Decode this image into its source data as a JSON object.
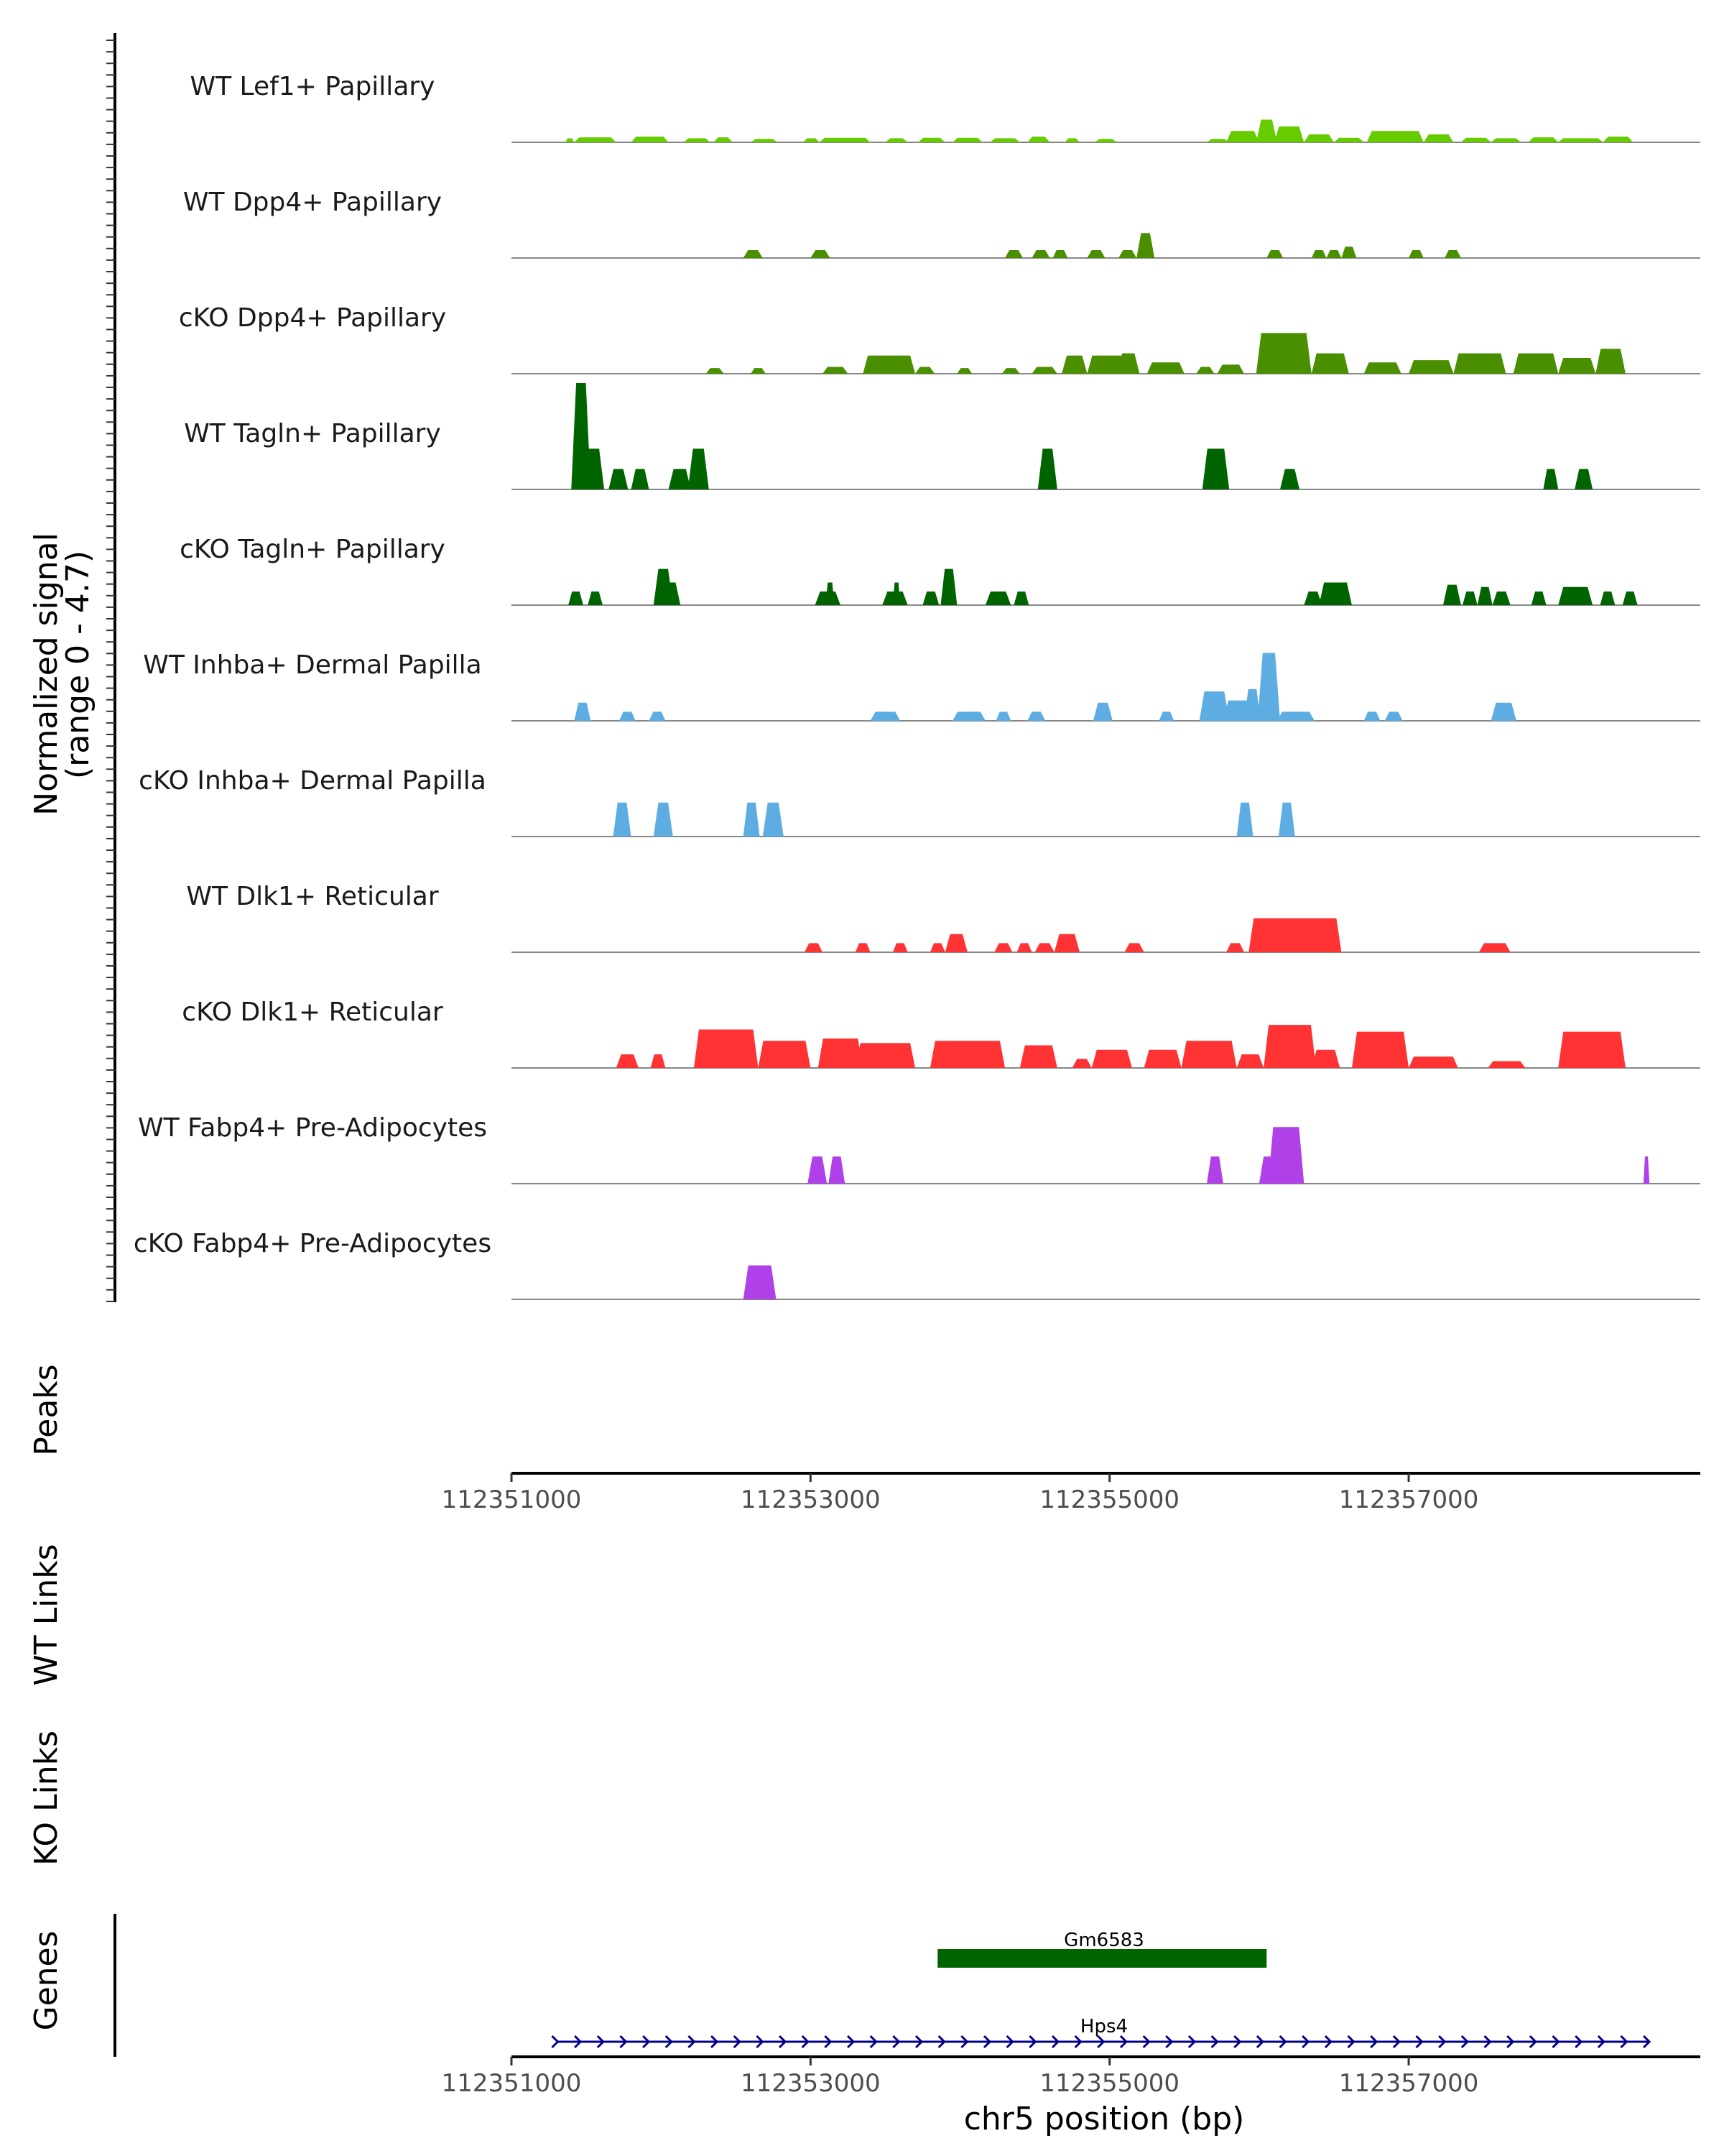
{
  "chart_data": {
    "type": "area",
    "title": "",
    "ylabel": "Normalized signal",
    "ylabel_range": "(range 0 - 4.7)",
    "ylim": [
      0,
      4.7
    ],
    "xlim": [
      112351000,
      112358950
    ],
    "xlabel": "chr5 position (bp)",
    "xticks": [
      112351000,
      112353000,
      112355000,
      112357000
    ],
    "xtick_labels": [
      "112351000",
      "112353000",
      "112355000",
      "112357000"
    ],
    "tracks": [
      {
        "name": "WT Lef1+ Papillary",
        "color": "#66cc00",
        "peaks": [
          [
            112351360,
            112351420,
            0.18
          ],
          [
            112351420,
            112351700,
            0.22
          ],
          [
            112351800,
            112352050,
            0.25
          ],
          [
            112352150,
            112352330,
            0.18
          ],
          [
            112352350,
            112352480,
            0.22
          ],
          [
            112352600,
            112352780,
            0.15
          ],
          [
            112352950,
            112353060,
            0.18
          ],
          [
            112353060,
            112353400,
            0.2
          ],
          [
            112353500,
            112353650,
            0.18
          ],
          [
            112353720,
            112353900,
            0.2
          ],
          [
            112353950,
            112354150,
            0.2
          ],
          [
            112354200,
            112354400,
            0.18
          ],
          [
            112354450,
            112354600,
            0.25
          ],
          [
            112354700,
            112354800,
            0.18
          ],
          [
            112354900,
            112355050,
            0.15
          ],
          [
            112355650,
            112355800,
            0.15
          ],
          [
            112355780,
            112356000,
            0.5
          ],
          [
            112355980,
            112356120,
            1.0
          ],
          [
            112356100,
            112356300,
            0.7
          ],
          [
            112356300,
            112356500,
            0.35
          ],
          [
            112356500,
            112356700,
            0.2
          ],
          [
            112356720,
            112357100,
            0.5
          ],
          [
            112357100,
            112357300,
            0.35
          ],
          [
            112357350,
            112357550,
            0.2
          ],
          [
            112357550,
            112357750,
            0.18
          ],
          [
            112357800,
            112358000,
            0.22
          ],
          [
            112358000,
            112358300,
            0.18
          ],
          [
            112358300,
            112358500,
            0.25
          ]
        ]
      },
      {
        "name": "WT Dpp4+ Papillary",
        "color": "#4a8f00",
        "peaks": [
          [
            112352550,
            112352680,
            0.35
          ],
          [
            112353000,
            112353130,
            0.35
          ],
          [
            112354300,
            112354420,
            0.35
          ],
          [
            112354480,
            112354600,
            0.35
          ],
          [
            112354620,
            112354720,
            0.35
          ],
          [
            112354850,
            112354970,
            0.35
          ],
          [
            112355060,
            112355180,
            0.35
          ],
          [
            112355180,
            112355300,
            1.1
          ],
          [
            112355200,
            112355300,
            0.6
          ],
          [
            112356050,
            112356160,
            0.35
          ],
          [
            112356350,
            112356450,
            0.35
          ],
          [
            112356450,
            112356550,
            0.35
          ],
          [
            112356550,
            112356650,
            0.5
          ],
          [
            112357000,
            112357100,
            0.35
          ],
          [
            112357240,
            112357350,
            0.35
          ]
        ]
      },
      {
        "name": "cKO Dpp4+ Papillary",
        "color": "#4a8f00",
        "peaks": [
          [
            112352300,
            112352420,
            0.25
          ],
          [
            112352600,
            112352700,
            0.25
          ],
          [
            112353080,
            112353250,
            0.3
          ],
          [
            112353350,
            112353700,
            0.8
          ],
          [
            112353700,
            112353830,
            0.3
          ],
          [
            112353980,
            112354080,
            0.25
          ],
          [
            112354280,
            112354400,
            0.25
          ],
          [
            112354480,
            112354650,
            0.3
          ],
          [
            112354680,
            112354850,
            0.8
          ],
          [
            112354850,
            112355150,
            0.8
          ],
          [
            112355050,
            112355200,
            0.9
          ],
          [
            112355250,
            112355500,
            0.5
          ],
          [
            112355580,
            112355700,
            0.3
          ],
          [
            112355720,
            112355900,
            0.4
          ],
          [
            112355980,
            112356350,
            1.8
          ],
          [
            112356350,
            112356600,
            0.9
          ],
          [
            112356700,
            112356950,
            0.5
          ],
          [
            112357000,
            112357300,
            0.6
          ],
          [
            112357300,
            112357650,
            0.9
          ],
          [
            112357700,
            112358000,
            0.9
          ],
          [
            112358000,
            112358250,
            0.7
          ],
          [
            112358250,
            112358450,
            1.1
          ]
        ]
      },
      {
        "name": "WT Tagln+ Papillary",
        "color": "#006400",
        "peaks": [
          [
            112351400,
            112351530,
            4.7
          ],
          [
            112351470,
            112351620,
            1.8
          ],
          [
            112351650,
            112351780,
            0.9
          ],
          [
            112351800,
            112351920,
            0.9
          ],
          [
            112352050,
            112352200,
            0.9
          ],
          [
            112352180,
            112352320,
            1.8
          ],
          [
            112354520,
            112354650,
            1.8
          ],
          [
            112355620,
            112355800,
            1.8
          ],
          [
            112356140,
            112356270,
            0.9
          ],
          [
            112357900,
            112358000,
            0.9
          ],
          [
            112358110,
            112358230,
            0.9
          ]
        ]
      },
      {
        "name": "cKO Tagln+ Papillary",
        "color": "#006400",
        "peaks": [
          [
            112351380,
            112351480,
            0.6
          ],
          [
            112351510,
            112351610,
            0.6
          ],
          [
            112351950,
            112352080,
            1.6
          ],
          [
            112352000,
            112352130,
            1.0
          ],
          [
            112353030,
            112353200,
            0.6
          ],
          [
            112353100,
            112353160,
            1.0
          ],
          [
            112353480,
            112353650,
            0.6
          ],
          [
            112353550,
            112353600,
            1.0
          ],
          [
            112353750,
            112353860,
            0.6
          ],
          [
            112353870,
            112353980,
            1.6
          ],
          [
            112354170,
            112354340,
            0.6
          ],
          [
            112354360,
            112354460,
            0.6
          ],
          [
            112356300,
            112356420,
            0.6
          ],
          [
            112356400,
            112356620,
            1.0
          ],
          [
            112357230,
            112357350,
            0.9
          ],
          [
            112357360,
            112357460,
            0.6
          ],
          [
            112357460,
            112357560,
            0.8
          ],
          [
            112357560,
            112357680,
            0.6
          ],
          [
            112357820,
            112357920,
            0.6
          ],
          [
            112358000,
            112358230,
            0.8
          ],
          [
            112358280,
            112358380,
            0.6
          ],
          [
            112358430,
            112358530,
            0.6
          ]
        ]
      },
      {
        "name": "WT Inhba+ Dermal Papilla",
        "color": "#5dade2",
        "peaks": [
          [
            112351420,
            112351530,
            0.8
          ],
          [
            112351720,
            112351830,
            0.4
          ],
          [
            112351920,
            112352030,
            0.4
          ],
          [
            112353400,
            112353600,
            0.4
          ],
          [
            112353950,
            112354170,
            0.4
          ],
          [
            112354240,
            112354340,
            0.4
          ],
          [
            112354450,
            112354570,
            0.4
          ],
          [
            112354890,
            112355020,
            0.8
          ],
          [
            112355330,
            112355430,
            0.4
          ],
          [
            112355600,
            112355800,
            1.3
          ],
          [
            112355760,
            112355950,
            0.9
          ],
          [
            112355900,
            112356010,
            1.4
          ],
          [
            112355990,
            112356140,
            3.0
          ],
          [
            112356120,
            112356370,
            0.4
          ],
          [
            112356700,
            112356810,
            0.4
          ],
          [
            112356840,
            112356960,
            0.4
          ],
          [
            112357550,
            112357720,
            0.8
          ]
        ]
      },
      {
        "name": "cKO Inhba+ Dermal Papilla",
        "color": "#5dade2",
        "peaks": [
          [
            112351680,
            112351800,
            1.5
          ],
          [
            112351950,
            112352080,
            1.5
          ],
          [
            112352550,
            112352660,
            1.5
          ],
          [
            112352680,
            112352820,
            1.5
          ],
          [
            112355850,
            112355960,
            1.5
          ],
          [
            112356130,
            112356240,
            1.5
          ]
        ]
      },
      {
        "name": "WT Dlk1+ Reticular",
        "color": "#ff3333",
        "peaks": [
          [
            112352960,
            112353080,
            0.4
          ],
          [
            112353300,
            112353400,
            0.4
          ],
          [
            112353550,
            112353650,
            0.4
          ],
          [
            112353800,
            112353900,
            0.4
          ],
          [
            112353900,
            112354050,
            0.8
          ],
          [
            112354230,
            112354350,
            0.4
          ],
          [
            112354380,
            112354480,
            0.4
          ],
          [
            112354500,
            112354630,
            0.4
          ],
          [
            112354630,
            112354800,
            0.8
          ],
          [
            112355100,
            112355230,
            0.4
          ],
          [
            112355780,
            112355900,
            0.4
          ],
          [
            112355930,
            112356550,
            1.5
          ],
          [
            112357470,
            112357680,
            0.4
          ]
        ]
      },
      {
        "name": "cKO Dlk1+ Reticular",
        "color": "#ff3333",
        "peaks": [
          [
            112351700,
            112351850,
            0.6
          ],
          [
            112351930,
            112352030,
            0.6
          ],
          [
            112352220,
            112352650,
            1.7
          ],
          [
            112352650,
            112353000,
            1.2
          ],
          [
            112353050,
            112353350,
            1.3
          ],
          [
            112353300,
            112353700,
            1.1
          ],
          [
            112353800,
            112354300,
            1.2
          ],
          [
            112354400,
            112354650,
            1.0
          ],
          [
            112354750,
            112354880,
            0.4
          ],
          [
            112354880,
            112355150,
            0.8
          ],
          [
            112355230,
            112355480,
            0.8
          ],
          [
            112355480,
            112355850,
            1.2
          ],
          [
            112355850,
            112356030,
            0.6
          ],
          [
            112356030,
            112356380,
            1.9
          ],
          [
            112356350,
            112356540,
            0.8
          ],
          [
            112356620,
            112357000,
            1.6
          ],
          [
            112357000,
            112357330,
            0.5
          ],
          [
            112357530,
            112357780,
            0.3
          ],
          [
            112358000,
            112358450,
            1.6
          ]
        ]
      },
      {
        "name": "WT Fabp4+ Pre-Adipocytes",
        "color": "#b040e8",
        "peaks": [
          [
            112352980,
            112353110,
            1.2
          ],
          [
            112353120,
            112353230,
            1.2
          ],
          [
            112355650,
            112355760,
            1.2
          ],
          [
            112356000,
            112356120,
            1.2
          ],
          [
            112356060,
            112356300,
            2.5
          ],
          [
            112358570,
            112358610,
            1.2
          ]
        ]
      },
      {
        "name": "cKO Fabp4+ Pre-Adipocytes",
        "color": "#b040e8",
        "peaks": [
          [
            112352550,
            112352770,
            1.5
          ]
        ]
      }
    ],
    "peaks_track_label": "Peaks",
    "links_tracks": [
      "WT Links",
      "KO Links"
    ],
    "genes_track_label": "Genes",
    "genes": [
      {
        "name": "Gm6583",
        "start": 112353850,
        "end": 112356050,
        "strand": "",
        "color": "#006400"
      },
      {
        "name": "Hps4",
        "start": 112351300,
        "end": 112358600,
        "strand": "+",
        "color": "#00008b"
      }
    ]
  }
}
